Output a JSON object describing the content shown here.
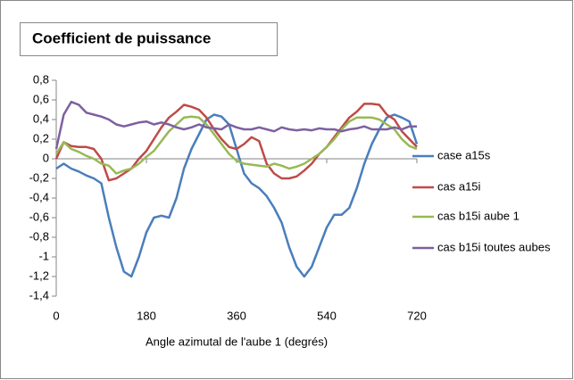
{
  "chart_data": {
    "type": "line",
    "title": "Coefficient de puissance",
    "x_label": "Angle azimutal de l'aube 1 (degrés)",
    "x": [
      0,
      15,
      30,
      45,
      60,
      75,
      90,
      105,
      120,
      135,
      150,
      165,
      180,
      195,
      210,
      225,
      240,
      255,
      270,
      285,
      300,
      315,
      330,
      345,
      360,
      375,
      390,
      405,
      420,
      435,
      450,
      465,
      480,
      495,
      510,
      525,
      540,
      555,
      570,
      585,
      600,
      615,
      630,
      645,
      660,
      675,
      690,
      705,
      720
    ],
    "xlim": [
      0,
      720
    ],
    "xticks": [
      0,
      180,
      360,
      540,
      720
    ],
    "ylim": [
      -1.4,
      0.8
    ],
    "yticks": [
      {
        "value": 0.8,
        "label": "0,8"
      },
      {
        "value": 0.6,
        "label": "0,6"
      },
      {
        "value": 0.4,
        "label": "0,4"
      },
      {
        "value": 0.2,
        "label": "0,2"
      },
      0,
      {
        "value": -0.2,
        "label": "-0,2"
      },
      {
        "value": -0.4,
        "label": "-0,4"
      },
      {
        "value": -0.6,
        "label": "-0,6"
      },
      {
        "value": -0.8,
        "label": "-0,8"
      },
      -1,
      {
        "value": -1.2,
        "label": "-1,2"
      },
      {
        "value": -1.4,
        "label": "-1,4"
      }
    ],
    "legend": "right",
    "series": [
      {
        "name": "case a15s",
        "color": "#4a7ebb",
        "values": [
          -0.1,
          -0.05,
          -0.1,
          -0.13,
          -0.17,
          -0.2,
          -0.25,
          -0.6,
          -0.9,
          -1.15,
          -1.2,
          -1.0,
          -0.75,
          -0.6,
          -0.58,
          -0.6,
          -0.4,
          -0.1,
          0.1,
          0.25,
          0.4,
          0.45,
          0.43,
          0.35,
          0.1,
          -0.15,
          -0.25,
          -0.3,
          -0.38,
          -0.5,
          -0.65,
          -0.9,
          -1.1,
          -1.2,
          -1.1,
          -0.9,
          -0.7,
          -0.57,
          -0.57,
          -0.5,
          -0.3,
          -0.05,
          0.15,
          0.3,
          0.42,
          0.45,
          0.42,
          0.38,
          0.15
        ]
      },
      {
        "name": "cas a15i",
        "color": "#be4b48",
        "values": [
          0,
          0.17,
          0.13,
          0.12,
          0.12,
          0.1,
          0,
          -0.22,
          -0.2,
          -0.15,
          -0.1,
          0,
          0.08,
          0.2,
          0.32,
          0.42,
          0.48,
          0.55,
          0.53,
          0.5,
          0.42,
          0.3,
          0.2,
          0.12,
          0.1,
          0.15,
          0.22,
          0.18,
          -0.05,
          -0.15,
          -0.2,
          -0.2,
          -0.18,
          -0.12,
          -0.05,
          0.05,
          0.12,
          0.22,
          0.32,
          0.42,
          0.48,
          0.56,
          0.56,
          0.55,
          0.45,
          0.4,
          0.28,
          0.2,
          0.12
        ]
      },
      {
        "name": "cas b15i aube 1",
        "color": "#98b954",
        "values": [
          0.05,
          0.17,
          0.1,
          0.07,
          0.03,
          0,
          -0.05,
          -0.07,
          -0.15,
          -0.12,
          -0.1,
          -0.05,
          0.02,
          0.08,
          0.18,
          0.28,
          0.35,
          0.42,
          0.43,
          0.42,
          0.35,
          0.25,
          0.15,
          0.05,
          -0.02,
          -0.05,
          -0.06,
          -0.07,
          -0.08,
          -0.05,
          -0.07,
          -0.1,
          -0.08,
          -0.05,
          0,
          0.05,
          0.12,
          0.2,
          0.3,
          0.38,
          0.42,
          0.42,
          0.42,
          0.4,
          0.35,
          0.3,
          0.2,
          0.13,
          0.1
        ]
      },
      {
        "name": "cas b15i toutes aubes",
        "color": "#7d60a0",
        "values": [
          0.1,
          0.45,
          0.58,
          0.55,
          0.47,
          0.45,
          0.43,
          0.4,
          0.35,
          0.33,
          0.35,
          0.37,
          0.38,
          0.35,
          0.37,
          0.35,
          0.32,
          0.3,
          0.32,
          0.35,
          0.32,
          0.31,
          0.3,
          0.35,
          0.32,
          0.3,
          0.3,
          0.32,
          0.3,
          0.28,
          0.32,
          0.3,
          0.29,
          0.3,
          0.29,
          0.31,
          0.3,
          0.3,
          0.28,
          0.3,
          0.31,
          0.33,
          0.3,
          0.3,
          0.3,
          0.32,
          0.3,
          0.33,
          0.33
        ]
      }
    ]
  }
}
